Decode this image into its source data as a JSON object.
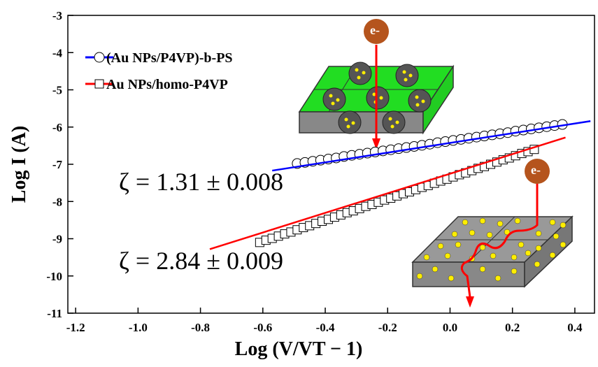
{
  "chart_data": {
    "type": "scatter",
    "xlabel": "Log (V/VT − 1)",
    "ylabel": "Log I (A)",
    "xlim": [
      -1.225,
      0.463
    ],
    "ylim": [
      -11,
      -3
    ],
    "xticks": [
      {
        "value": -1.2,
        "label": "-1.2"
      },
      {
        "value": -1,
        "label": "-1.0"
      },
      -0.8,
      -0.6,
      -0.4,
      -0.2,
      {
        "value": 0,
        "label": "0.0"
      },
      0.2,
      0.4
    ],
    "yticks": [
      -11,
      -10,
      -9,
      -8,
      -7,
      -6,
      -5,
      -4,
      -3
    ],
    "legend": "upper left",
    "series": [
      {
        "name": "(Au NPs/P4VP)-b-PS",
        "marker": "circle",
        "color": "#0000ff",
        "x": [
          -0.49,
          -0.465,
          -0.44,
          -0.415,
          -0.39,
          -0.365,
          -0.34,
          -0.315,
          -0.29,
          -0.265,
          -0.24,
          -0.215,
          -0.19,
          -0.165,
          -0.14,
          -0.115,
          -0.09,
          -0.065,
          -0.04,
          -0.015,
          0.01,
          0.035,
          0.06,
          0.085,
          0.11,
          0.135,
          0.16,
          0.185,
          0.21,
          0.235,
          0.26,
          0.285,
          0.31,
          0.335,
          0.36
        ],
        "values": [
          -6.98,
          -6.95,
          -6.92,
          -6.89,
          -6.86,
          -6.83,
          -6.79,
          -6.76,
          -6.73,
          -6.7,
          -6.67,
          -6.64,
          -6.61,
          -6.58,
          -6.55,
          -6.52,
          -6.49,
          -6.46,
          -6.42,
          -6.39,
          -6.36,
          -6.33,
          -6.3,
          -6.27,
          -6.24,
          -6.21,
          -6.18,
          -6.15,
          -6.11,
          -6.08,
          -6.05,
          -6.02,
          -5.99,
          -5.96,
          -5.93
        ],
        "fit": {
          "x": [
            -0.57,
            0.45
          ],
          "values": [
            -7.17,
            -5.84
          ]
        }
      },
      {
        "name": "Au NPs/homo-P4VP",
        "marker": "square",
        "color": "#ff0000",
        "x": [
          -0.61,
          -0.59,
          -0.57,
          -0.55,
          -0.53,
          -0.51,
          -0.49,
          -0.47,
          -0.45,
          -0.43,
          -0.41,
          -0.39,
          -0.37,
          -0.35,
          -0.33,
          -0.31,
          -0.29,
          -0.27,
          -0.25,
          -0.23,
          -0.21,
          -0.19,
          -0.17,
          -0.15,
          -0.13,
          -0.11,
          -0.09,
          -0.07,
          -0.05,
          -0.03,
          -0.01,
          0.01,
          0.03,
          0.05,
          0.07,
          0.09,
          0.11,
          0.13,
          0.15,
          0.17,
          0.19,
          0.21,
          0.23,
          0.25,
          0.27
        ],
        "values": [
          -9.1,
          -9.04,
          -8.99,
          -8.93,
          -8.87,
          -8.82,
          -8.76,
          -8.7,
          -8.65,
          -8.59,
          -8.53,
          -8.48,
          -8.42,
          -8.36,
          -8.3,
          -8.25,
          -8.19,
          -8.13,
          -8.08,
          -8.02,
          -7.96,
          -7.91,
          -7.85,
          -7.79,
          -7.74,
          -7.68,
          -7.62,
          -7.57,
          -7.51,
          -7.45,
          -7.4,
          -7.34,
          -7.28,
          -7.23,
          -7.17,
          -7.11,
          -7.06,
          -7.0,
          -6.94,
          -6.88,
          -6.83,
          -6.77,
          -6.71,
          -6.66,
          -6.6
        ],
        "fit": {
          "x": [
            -0.77,
            0.37
          ],
          "values": [
            -9.28,
            -6.28
          ]
        }
      }
    ],
    "annotations": [
      "ζ = 1.31 ± 0.008",
      "ζ = 2.84 ± 0.009"
    ],
    "insets": [
      {
        "label": "e-"
      },
      {
        "label": "e-"
      }
    ]
  }
}
